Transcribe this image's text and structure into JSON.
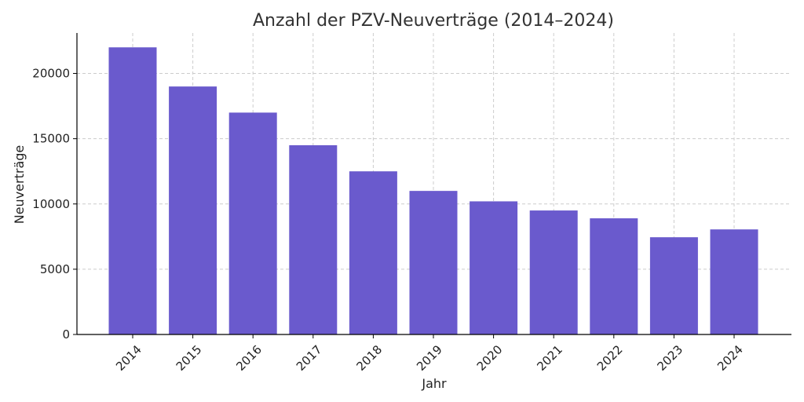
{
  "chart_data": {
    "type": "bar",
    "title": "Anzahl der PZV-Neuverträge (2014–2024)",
    "xlabel": "Jahr",
    "ylabel": "Neuverträge",
    "categories": [
      "2014",
      "2015",
      "2016",
      "2017",
      "2018",
      "2019",
      "2020",
      "2021",
      "2022",
      "2023",
      "2024"
    ],
    "values": [
      22000,
      19000,
      17000,
      14500,
      12500,
      11000,
      10200,
      9500,
      8900,
      7450,
      8050
    ],
    "ylim": [
      0,
      23100
    ],
    "yticks": [
      0,
      5000,
      10000,
      15000,
      20000
    ],
    "grid": true,
    "bar_color": "#6a5acd"
  }
}
